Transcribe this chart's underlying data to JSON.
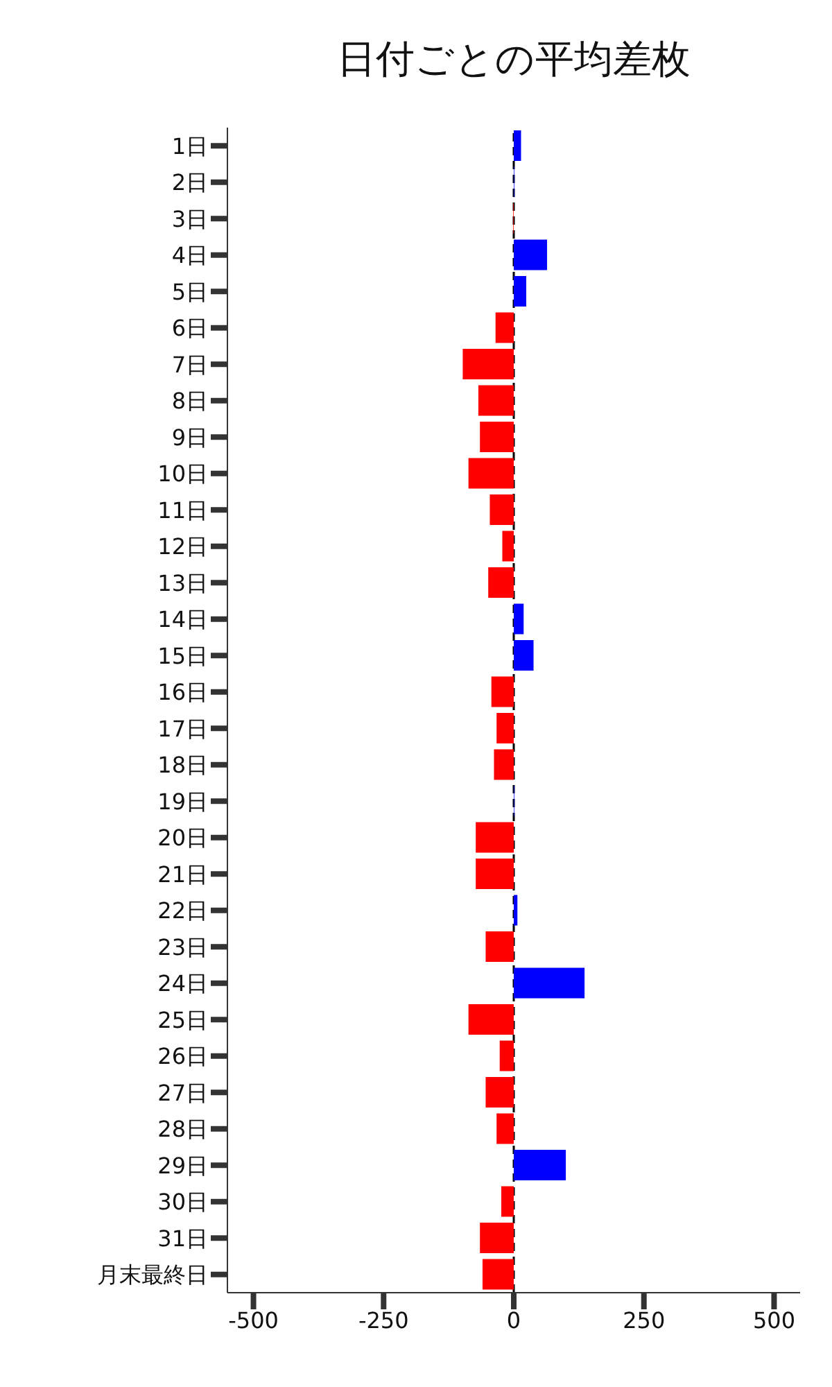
{
  "chart_data": {
    "type": "bar",
    "orientation": "horizontal",
    "title": "日付ごとの平均差枚",
    "categories": [
      "1日",
      "2日",
      "3日",
      "4日",
      "5日",
      "6日",
      "7日",
      "8日",
      "9日",
      "10日",
      "11日",
      "12日",
      "13日",
      "14日",
      "15日",
      "16日",
      "17日",
      "18日",
      "19日",
      "20日",
      "21日",
      "22日",
      "23日",
      "24日",
      "25日",
      "26日",
      "27日",
      "28日",
      "29日",
      "30日",
      "31日",
      "月末最終日"
    ],
    "values": [
      14,
      1,
      -1,
      64,
      24,
      -35,
      -98,
      -68,
      -65,
      -87,
      -46,
      -22,
      -49,
      19,
      38,
      -43,
      -33,
      -38,
      1,
      -73,
      -73,
      7,
      -54,
      136,
      -87,
      -27,
      -54,
      -33,
      100,
      -24,
      -65,
      -60
    ],
    "colors": [
      "#0000ff",
      "#0000ff",
      "#ff0000",
      "#0000ff",
      "#0000ff",
      "#ff0000",
      "#ff0000",
      "#ff0000",
      "#ff0000",
      "#ff0000",
      "#ff0000",
      "#ff0000",
      "#ff0000",
      "#0000ff",
      "#0000ff",
      "#ff0000",
      "#ff0000",
      "#ff0000",
      "#0000ff",
      "#ff0000",
      "#ff0000",
      "#0000ff",
      "#ff0000",
      "#0000ff",
      "#ff0000",
      "#ff0000",
      "#ff0000",
      "#ff0000",
      "#0000ff",
      "#ff0000",
      "#ff0000",
      "#ff0000"
    ],
    "xlim": [
      -550,
      550
    ],
    "xticks": [
      -500,
      -250,
      0,
      250,
      500
    ],
    "ref_lines": [
      {
        "axis": "x",
        "value": 0,
        "color": "#000000",
        "line_style": "dashed"
      }
    ],
    "grid": false,
    "legend": false
  }
}
